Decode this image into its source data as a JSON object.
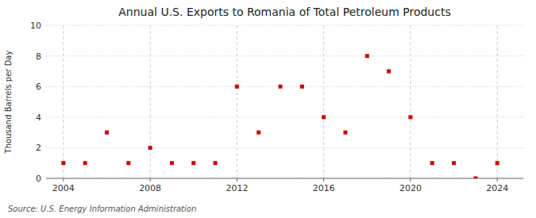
{
  "chart_data": {
    "type": "scatter",
    "title": "Annual U.S. Exports to Romania of Total Petroleum Products",
    "ylabel": "Thousand Barrels per Day",
    "source": "Source: U.S. Energy Information Administration",
    "x": [
      2004,
      2005,
      2006,
      2007,
      2008,
      2009,
      2010,
      2011,
      2012,
      2013,
      2014,
      2015,
      2016,
      2017,
      2018,
      2019,
      2020,
      2021,
      2022,
      2023,
      2024
    ],
    "values": [
      1,
      1,
      3,
      1,
      2,
      1,
      1,
      1,
      6,
      3,
      6,
      6,
      4,
      3,
      8,
      7,
      4,
      1,
      1,
      0,
      1
    ],
    "color": "#cc0000",
    "marker": "square",
    "xlim": [
      2003.2,
      2025.2
    ],
    "xticks": [
      2004,
      2008,
      2012,
      2016,
      2020,
      2024
    ],
    "ylim": [
      0,
      10
    ],
    "yticks": [
      0,
      2,
      4,
      6,
      8,
      10
    ],
    "grid": true
  }
}
